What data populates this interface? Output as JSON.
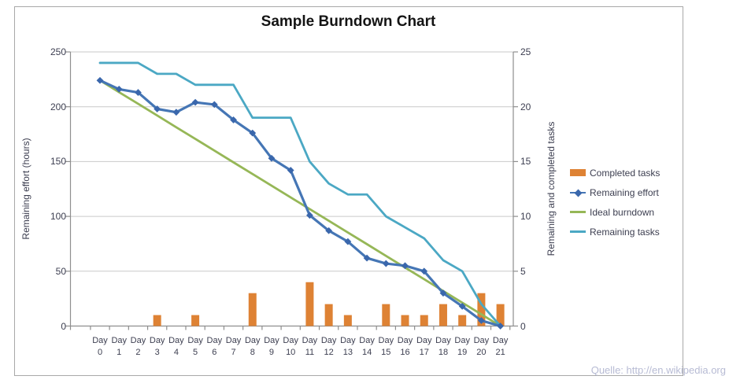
{
  "source_note": "Quelle: http://en.wikipedia.org",
  "axes": {
    "left": {
      "title": "Remaining effort (hours)",
      "ticks": [
        "250",
        "200",
        "150",
        "100",
        "50",
        "0"
      ]
    },
    "right": {
      "title": "Remaining and completed tasks",
      "ticks": [
        "25",
        "20",
        "15",
        "10",
        "5",
        "0"
      ]
    },
    "x": {
      "day_word": "Day",
      "day_numbers": [
        "0",
        "1",
        "2",
        "3",
        "4",
        "5",
        "6",
        "7",
        "8",
        "9",
        "10",
        "11",
        "12",
        "13",
        "14",
        "15",
        "16",
        "17",
        "18",
        "19",
        "20",
        "21"
      ]
    }
  },
  "chart_data": {
    "type": "bar",
    "subtype": "combo bar + line, dual axis",
    "title": "Sample Burndown Chart",
    "categories": [
      "Day 0",
      "Day 1",
      "Day 2",
      "Day 3",
      "Day 4",
      "Day 5",
      "Day 6",
      "Day 7",
      "Day 8",
      "Day 9",
      "Day 10",
      "Day 11",
      "Day 12",
      "Day 13",
      "Day 14",
      "Day 15",
      "Day 16",
      "Day 17",
      "Day 18",
      "Day 19",
      "Day 20",
      "Day 21"
    ],
    "left_axis": {
      "label": "Remaining effort (hours)",
      "range": [
        0,
        250
      ],
      "tick_step": 50
    },
    "right_axis": {
      "label": "Remaining and completed tasks",
      "range": [
        0,
        25
      ],
      "tick_step": 5
    },
    "grid": true,
    "legend_position": "right",
    "series": [
      {
        "name": "Completed tasks",
        "type": "bar",
        "axis": "right",
        "color": "#DE8234",
        "values": [
          0,
          0,
          0,
          1,
          0,
          1,
          0,
          0,
          3,
          0,
          0,
          4,
          2,
          1,
          0,
          2,
          1,
          1,
          2,
          1,
          3,
          2
        ]
      },
      {
        "name": "Remaining effort",
        "type": "line",
        "axis": "left",
        "marker": "diamond",
        "color": "#4576B5",
        "marker_color": "#3A67AC",
        "values": [
          224,
          216,
          213,
          198,
          195,
          204,
          202,
          188,
          176,
          153,
          142,
          101,
          87,
          77,
          62,
          57,
          55,
          50,
          30,
          18,
          5,
          0
        ]
      },
      {
        "name": "Ideal burndown",
        "type": "line",
        "axis": "left",
        "color": "#96B757",
        "values": [
          224,
          213.3,
          202.7,
          192,
          181.3,
          170.7,
          160,
          149.3,
          138.7,
          128,
          117.3,
          106.7,
          96,
          85.3,
          74.7,
          64,
          53.3,
          42.7,
          32,
          21.3,
          10.7,
          0
        ]
      },
      {
        "name": "Remaining tasks",
        "type": "line",
        "axis": "right",
        "color": "#4BA8C4",
        "values": [
          24,
          24,
          24,
          23,
          23,
          22,
          22,
          22,
          19,
          19,
          19,
          15,
          13,
          12,
          12,
          10,
          9,
          8,
          6,
          5,
          2,
          0
        ]
      }
    ]
  }
}
